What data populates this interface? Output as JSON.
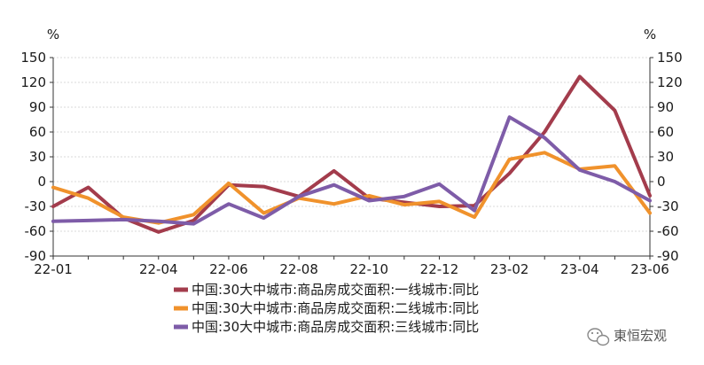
{
  "chart_data": {
    "type": "line",
    "x": [
      "22-01",
      "22-02",
      "22-03",
      "22-04",
      "22-05",
      "22-06",
      "22-07",
      "22-08",
      "22-09",
      "22-10",
      "22-11",
      "22-12",
      "23-01",
      "23-02",
      "23-03",
      "23-04",
      "23-05",
      "23-06"
    ],
    "x_tick_labels": [
      "22-01",
      "22-04",
      "22-06",
      "22-08",
      "22-10",
      "22-12",
      "23-02",
      "23-04",
      "23-06"
    ],
    "y_left_unit": "%",
    "y_right_unit": "%",
    "ylim": [
      -90,
      150
    ],
    "yticks": [
      150,
      120,
      90,
      60,
      30,
      0,
      -30,
      -60,
      -90
    ],
    "grid": true,
    "legend_position": "bottom",
    "series": [
      {
        "name": "中国:30大中城市:商品房成交面积:一线城市:同比",
        "color": "#a33c4c",
        "values": [
          -30,
          -7,
          -44,
          -61,
          -47,
          -4,
          -6,
          -18,
          13,
          -20,
          -25,
          -30,
          -29,
          10,
          60,
          127,
          86,
          -17
        ]
      },
      {
        "name": "中国:30大中城市:商品房成交面积:二线城市:同比",
        "color": "#f0922c",
        "values": [
          -7,
          -20,
          -43,
          -50,
          -40,
          -2,
          -38,
          -20,
          -27,
          -17,
          -28,
          -24,
          -43,
          27,
          35,
          15,
          19,
          -38
        ]
      },
      {
        "name": "中国:30大中城市:商品房成交面积:三线城市:同比",
        "color": "#7e5ca8",
        "values": [
          -48,
          -47,
          -46,
          -48,
          -51,
          -27,
          -44,
          -18,
          -4,
          -23,
          -18,
          -3,
          -35,
          78,
          53,
          14,
          0,
          -23
        ]
      }
    ]
  },
  "watermark": {
    "text": "東恒宏观",
    "icon": "wechat-icon"
  }
}
